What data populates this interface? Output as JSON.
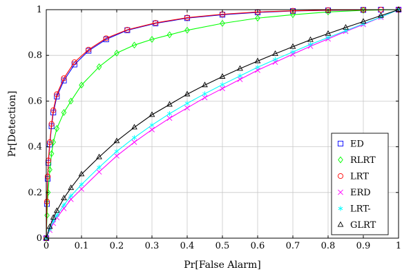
{
  "chart_data": {
    "type": "line",
    "xlabel": "Pr[False Alarm]",
    "ylabel": "Pr[Detection]",
    "xlim": [
      0,
      1
    ],
    "ylim": [
      0,
      1
    ],
    "grid": true,
    "legend_position": "bottom-right",
    "x_ticks": [
      "0",
      "0.1",
      "0.2",
      "0.3",
      "0.4",
      "0.5",
      "0.6",
      "0.7",
      "0.8",
      "0.9",
      "1"
    ],
    "y_ticks": [
      "0",
      "0.2",
      "0.4",
      "0.6",
      "0.8",
      "1"
    ],
    "series": [
      {
        "name": "ED",
        "color": "#0000ff",
        "marker": "square",
        "x": [
          0,
          0.002,
          0.004,
          0.006,
          0.01,
          0.015,
          0.02,
          0.03,
          0.05,
          0.08,
          0.12,
          0.17,
          0.23,
          0.31,
          0.4,
          0.5,
          0.6,
          0.7,
          0.8,
          0.9,
          0.95,
          1
        ],
        "y": [
          0,
          0.15,
          0.26,
          0.33,
          0.41,
          0.49,
          0.55,
          0.62,
          0.69,
          0.76,
          0.82,
          0.87,
          0.91,
          0.94,
          0.963,
          0.978,
          0.988,
          0.994,
          0.997,
          0.999,
          1.0,
          1.0
        ]
      },
      {
        "name": "RLRT",
        "color": "#00ff00",
        "marker": "diamond",
        "x": [
          0,
          0.002,
          0.005,
          0.01,
          0.015,
          0.02,
          0.03,
          0.05,
          0.07,
          0.1,
          0.15,
          0.2,
          0.25,
          0.3,
          0.35,
          0.4,
          0.5,
          0.6,
          0.7,
          0.8,
          0.9,
          1
        ],
        "y": [
          0,
          0.1,
          0.2,
          0.3,
          0.37,
          0.42,
          0.48,
          0.55,
          0.6,
          0.67,
          0.75,
          0.81,
          0.845,
          0.87,
          0.89,
          0.91,
          0.94,
          0.963,
          0.978,
          0.99,
          0.997,
          1.0
        ]
      },
      {
        "name": "LRT",
        "color": "#ff0000",
        "marker": "circle",
        "x": [
          0,
          0.002,
          0.004,
          0.006,
          0.01,
          0.015,
          0.02,
          0.03,
          0.05,
          0.08,
          0.12,
          0.17,
          0.23,
          0.31,
          0.4,
          0.5,
          0.6,
          0.7,
          0.8,
          0.9,
          0.95,
          1
        ],
        "y": [
          0,
          0.16,
          0.27,
          0.34,
          0.42,
          0.5,
          0.56,
          0.63,
          0.7,
          0.77,
          0.825,
          0.875,
          0.912,
          0.942,
          0.965,
          0.98,
          0.99,
          0.995,
          0.998,
          0.999,
          1.0,
          1.0
        ]
      },
      {
        "name": "ERD",
        "color": "#ff00ff",
        "marker": "x",
        "x": [
          0,
          0.01,
          0.02,
          0.03,
          0.05,
          0.07,
          0.1,
          0.15,
          0.2,
          0.25,
          0.3,
          0.35,
          0.4,
          0.45,
          0.5,
          0.55,
          0.6,
          0.65,
          0.7,
          0.75,
          0.8,
          0.85,
          0.9,
          0.95,
          1
        ],
        "y": [
          0,
          0.035,
          0.065,
          0.09,
          0.13,
          0.17,
          0.215,
          0.29,
          0.36,
          0.42,
          0.475,
          0.525,
          0.57,
          0.615,
          0.655,
          0.695,
          0.735,
          0.77,
          0.805,
          0.84,
          0.872,
          0.905,
          0.935,
          0.967,
          1.0
        ]
      },
      {
        "name": "LRT-",
        "color": "#00ffff",
        "marker": "asterisk",
        "x": [
          0,
          0.01,
          0.02,
          0.03,
          0.05,
          0.07,
          0.1,
          0.15,
          0.2,
          0.25,
          0.3,
          0.35,
          0.4,
          0.45,
          0.5,
          0.55,
          0.6,
          0.65,
          0.7,
          0.75,
          0.8,
          0.85,
          0.9,
          0.95,
          1
        ],
        "y": [
          0,
          0.04,
          0.075,
          0.1,
          0.145,
          0.185,
          0.235,
          0.31,
          0.38,
          0.44,
          0.495,
          0.545,
          0.59,
          0.632,
          0.672,
          0.71,
          0.748,
          0.782,
          0.815,
          0.848,
          0.878,
          0.908,
          0.938,
          0.968,
          1.0
        ]
      },
      {
        "name": "GLRT",
        "color": "#000000",
        "marker": "triangle",
        "x": [
          0,
          0.01,
          0.02,
          0.03,
          0.05,
          0.07,
          0.1,
          0.15,
          0.2,
          0.25,
          0.3,
          0.35,
          0.4,
          0.45,
          0.5,
          0.55,
          0.6,
          0.65,
          0.7,
          0.75,
          0.8,
          0.85,
          0.9,
          0.95,
          1
        ],
        "y": [
          0,
          0.05,
          0.09,
          0.12,
          0.175,
          0.22,
          0.28,
          0.355,
          0.425,
          0.485,
          0.54,
          0.585,
          0.63,
          0.67,
          0.707,
          0.742,
          0.775,
          0.807,
          0.838,
          0.868,
          0.895,
          0.922,
          0.948,
          0.974,
          1.0
        ]
      }
    ]
  }
}
